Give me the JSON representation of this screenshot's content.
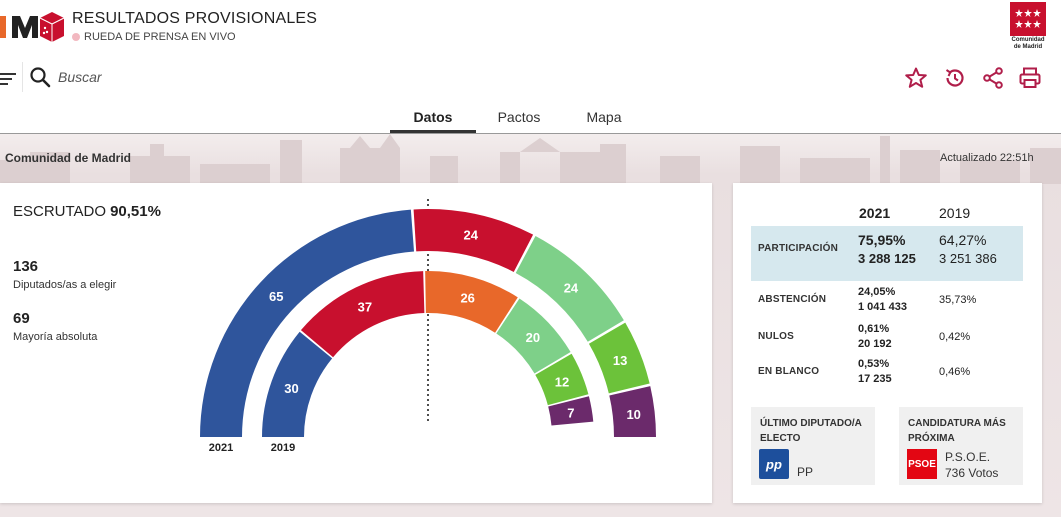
{
  "header": {
    "title": "RESULTADOS PROVISIONALES",
    "subtitle": "RUEDA DE PRENSA EN VIVO",
    "region_logo_text": "Comunidad de Madrid"
  },
  "toolbar": {
    "search_placeholder": "Buscar",
    "icons": [
      "filter-icon",
      "search-icon",
      "star-icon",
      "history-icon",
      "share-icon",
      "print-icon"
    ]
  },
  "tabs": [
    {
      "label": "Datos",
      "active": true
    },
    {
      "label": "Pactos",
      "active": false
    },
    {
      "label": "Mapa",
      "active": false
    }
  ],
  "banner": {
    "region": "Comunidad de Madrid",
    "updated": "Actualizado 22:51h"
  },
  "summary": {
    "scrutiny_label": "ESCRUTADO",
    "scrutiny_value": "90,51%",
    "seats_total": "136",
    "seats_total_label": "Diputados/as a elegir",
    "majority": "69",
    "majority_label": "Mayoría absoluta"
  },
  "chart_data": {
    "type": "semicircle-parliament",
    "total_seats": 136,
    "rings": [
      {
        "name": "2021",
        "parties": [
          {
            "seats": 65,
            "color": "#2f559c"
          },
          {
            "seats": 24,
            "color": "#c8102e"
          },
          {
            "seats": 24,
            "color": "#7ed089"
          },
          {
            "seats": 13,
            "color": "#6cc23a"
          },
          {
            "seats": 10,
            "color": "#6b2a6b"
          }
        ]
      },
      {
        "name": "2019",
        "parties": [
          {
            "seats": 30,
            "color": "#2f559c"
          },
          {
            "seats": 37,
            "color": "#c8102e"
          },
          {
            "seats": 26,
            "color": "#e8682a"
          },
          {
            "seats": 20,
            "color": "#7ed089"
          },
          {
            "seats": 12,
            "color": "#6cc23a"
          },
          {
            "seats": 7,
            "color": "#6b2a6b"
          }
        ]
      }
    ]
  },
  "stats": {
    "col_2021": "2021",
    "col_2019": "2019",
    "participation": {
      "label": "PARTICIPACIÓN",
      "pct_2021": "75,95%",
      "abs_2021": "3 288 125",
      "pct_2019": "64,27%",
      "abs_2019": "3 251 386"
    },
    "abstention": {
      "label": "ABSTENCIÓN",
      "pct_2021": "24,05%",
      "abs_2021": "1 041 433",
      "pct_2019": "35,73%"
    },
    "null_votes": {
      "label": "NULOS",
      "pct_2021": "0,61%",
      "abs_2021": "20 192",
      "pct_2019": "0,42%"
    },
    "blank_votes": {
      "label": "EN BLANCO",
      "pct_2021": "0,53%",
      "abs_2021": "17 235",
      "pct_2019": "0,46%"
    }
  },
  "cards": {
    "last_elected": {
      "title": "ÚLTIMO DIPUTADO/A ELECTO",
      "party": "PP",
      "logo_text": "pp",
      "color": "#1d4f9c"
    },
    "next_candidate": {
      "title": "CANDIDATURA MÁS PRÓXIMA",
      "party": "P.S.O.E.",
      "votes": "736 Votos",
      "logo_text": "PSOE",
      "color": "#e30613"
    }
  }
}
